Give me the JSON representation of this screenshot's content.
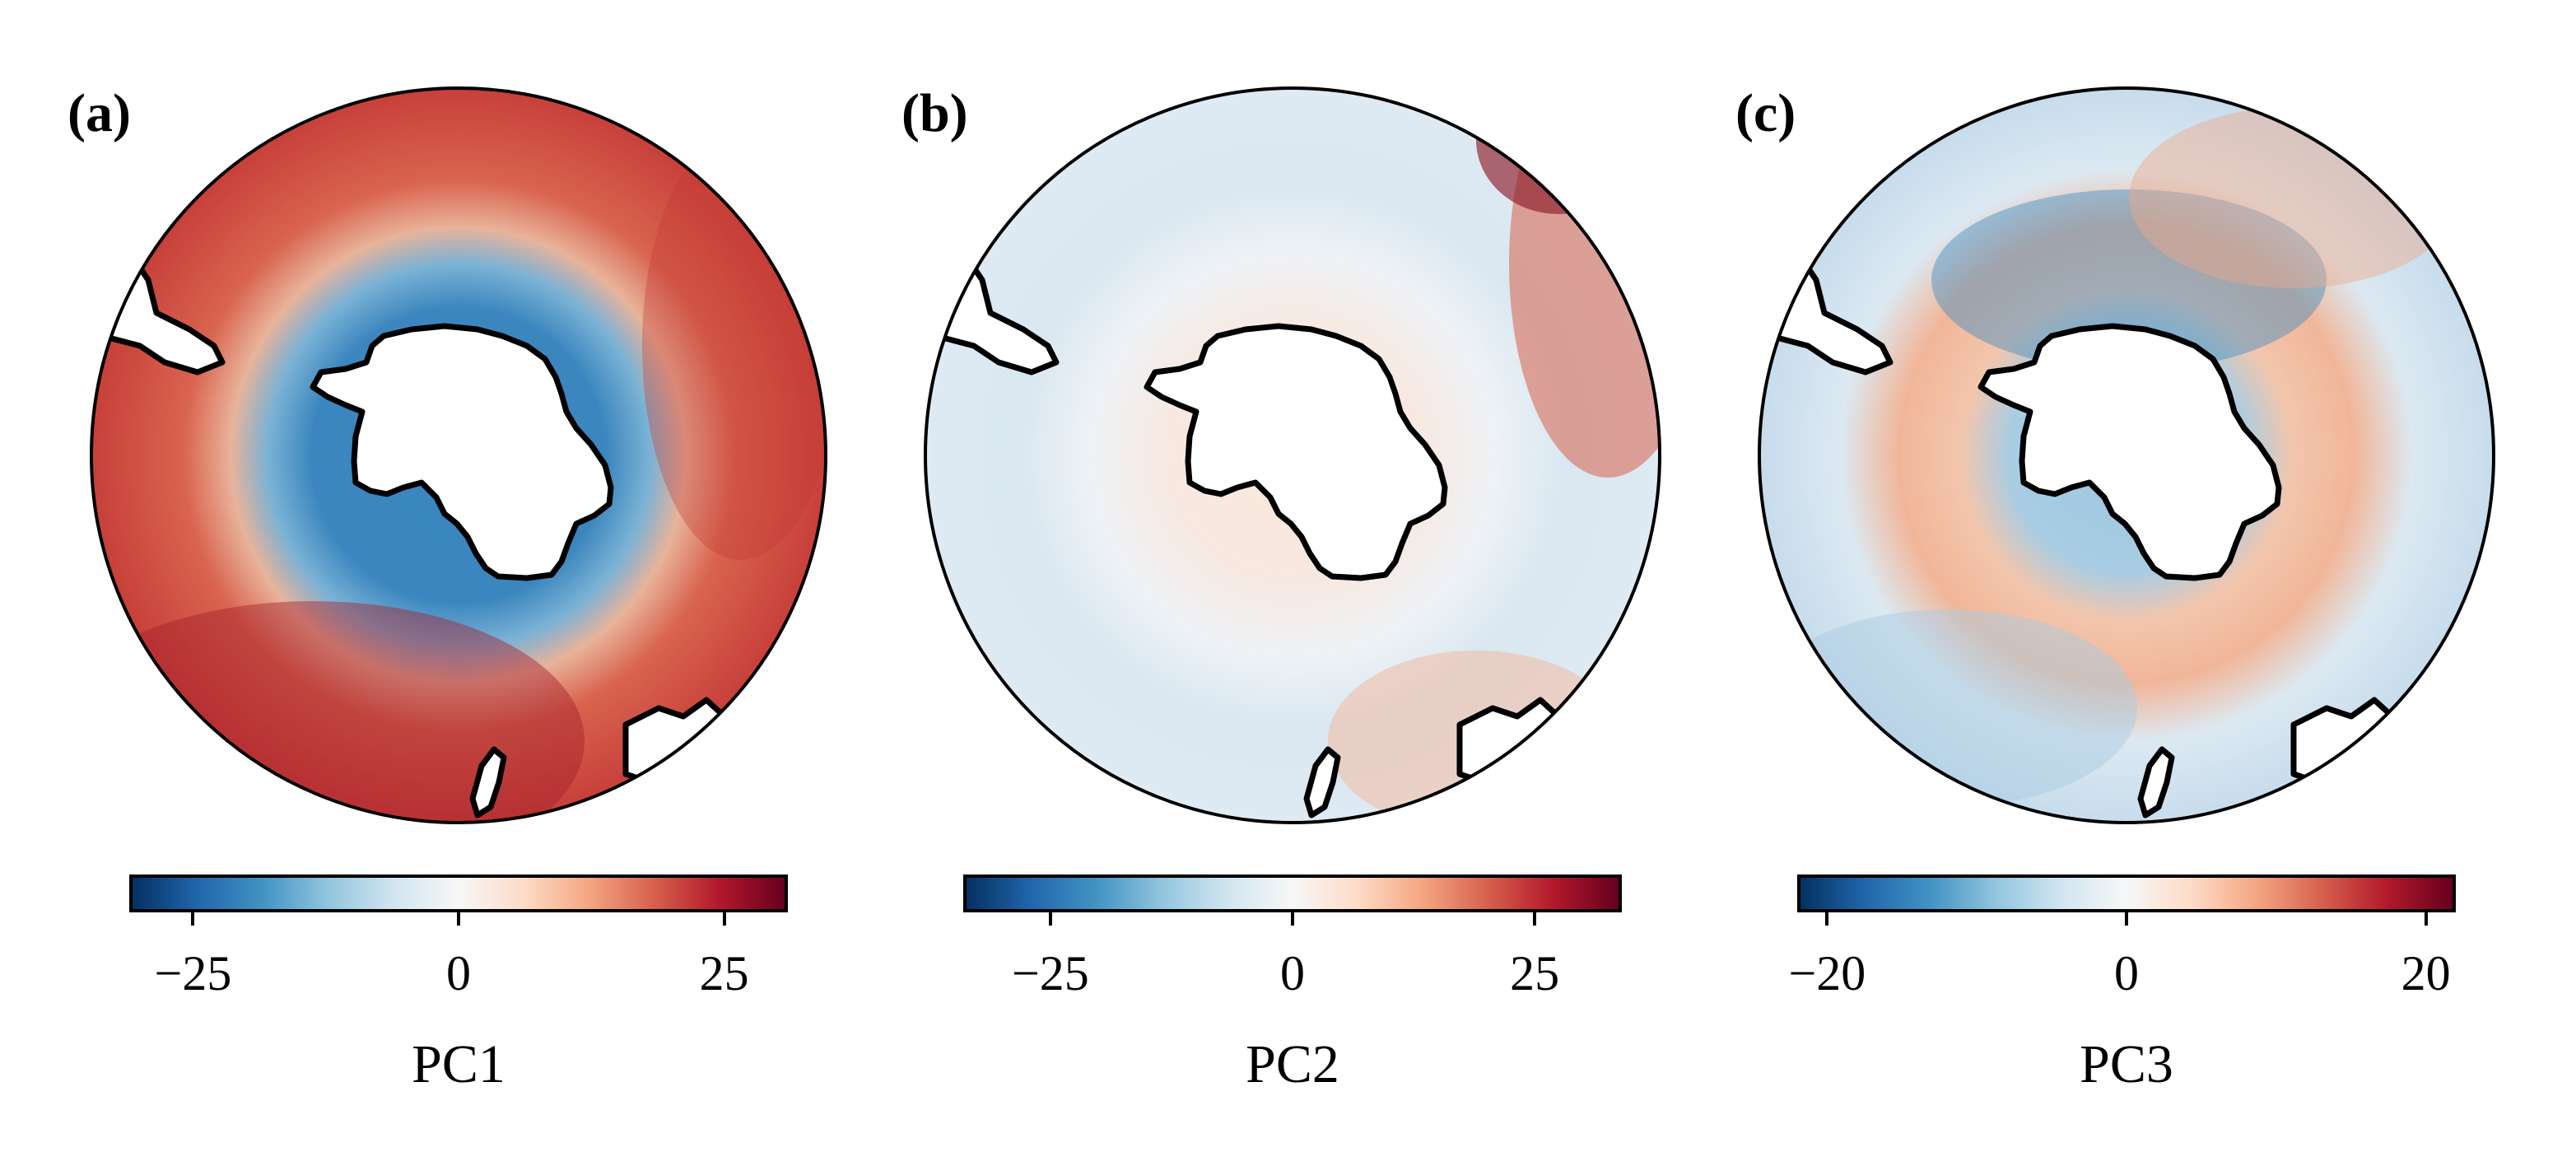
{
  "panels": [
    {
      "label": "(a)",
      "colorbar": {
        "title": "PC1",
        "ticks": [
          "−25",
          "0",
          "25"
        ],
        "tick_values": [
          -25,
          0,
          25
        ],
        "range": [
          -31,
          31
        ]
      },
      "pattern": "pc1"
    },
    {
      "label": "(b)",
      "colorbar": {
        "title": "PC2",
        "ticks": [
          "−25",
          "0",
          "25"
        ],
        "tick_values": [
          -25,
          0,
          25
        ],
        "range": [
          -34,
          34
        ]
      },
      "pattern": "pc2"
    },
    {
      "label": "(c)",
      "colorbar": {
        "title": "PC3",
        "ticks": [
          "−20",
          "0",
          "20"
        ],
        "tick_values": [
          -20,
          0,
          20
        ],
        "range": [
          -22,
          22
        ]
      },
      "pattern": "pc3"
    }
  ],
  "colormap": {
    "name": "RdBu_r",
    "stops": [
      "#053061",
      "#2166ac",
      "#4393c3",
      "#92c5de",
      "#d1e5f0",
      "#f7f7f7",
      "#fddbc7",
      "#f4a582",
      "#d6604d",
      "#b2182b",
      "#67001f"
    ]
  }
}
